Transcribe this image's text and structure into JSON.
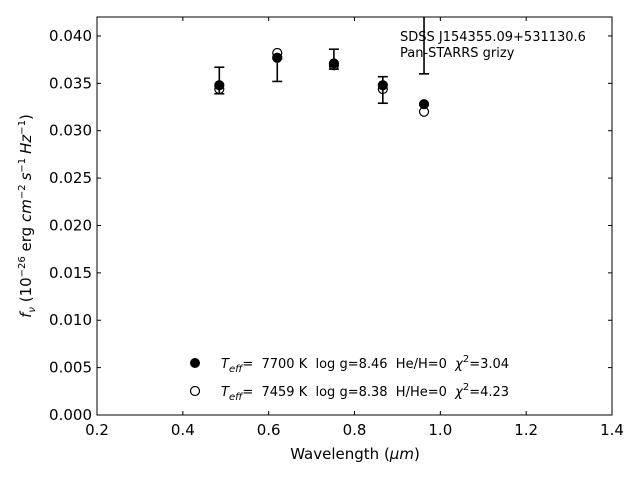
{
  "chart_data": {
    "type": "scatter",
    "title": "",
    "xlabel_prefix": "Wavelength (",
    "xlabel_symbol": "μm",
    "xlabel_suffix": ")",
    "ylabel": "f_ν (10^-26 erg cm^-2 s^-1 Hz^-1)",
    "ylabel_parts": {
      "f": "f",
      "nu": "ν",
      "open": " (10",
      "exp1": "−26",
      "erg": " erg ",
      "cm": "cm",
      "exp2": "−2",
      "s": "s",
      "exp3": "−1",
      "hz": "Hz",
      "exp4": "−1",
      "close": ")"
    },
    "xlim": [
      0.2,
      1.4
    ],
    "ylim": [
      0.0,
      0.042
    ],
    "xticks": [
      0.2,
      0.4,
      0.6,
      0.8,
      1.0,
      1.2,
      1.4
    ],
    "xtick_labels": [
      "0.2",
      "0.4",
      "0.6",
      "0.8",
      "1.0",
      "1.2",
      "1.4"
    ],
    "yticks": [
      0.0,
      0.005,
      0.01,
      0.015,
      0.02,
      0.025,
      0.03,
      0.035,
      0.04
    ],
    "ytick_labels": [
      "0.000",
      "0.005",
      "0.010",
      "0.015",
      "0.020",
      "0.025",
      "0.030",
      "0.035",
      "0.040"
    ],
    "annotation": {
      "line1": "SDSS J154355.09+531130.6",
      "line2": "Pan-STARRS grizy"
    },
    "observed": {
      "x": [
        0.485,
        0.62,
        0.752,
        0.866,
        0.962
      ],
      "y_low": [
        0.0339,
        0.0352,
        0.0365,
        0.0329,
        0.036
      ],
      "y_high": [
        0.0367,
        0.0376,
        0.0386,
        0.0357,
        0.043
      ]
    },
    "series": [
      {
        "marker": "filled",
        "legend": {
          "teff_sym": "T",
          "teff_sub": "eff",
          "text": "=  7700 K  log g=8.46  He/H=0  ",
          "chi_sym": "χ",
          "chi_sup": "2",
          "chi_val": "=3.04"
        },
        "x": [
          0.485,
          0.62,
          0.752,
          0.866,
          0.962
        ],
        "y": [
          0.0348,
          0.0377,
          0.0371,
          0.0348,
          0.0328
        ]
      },
      {
        "marker": "open",
        "legend": {
          "teff_sym": "T",
          "teff_sub": "eff",
          "text": "=  7459 K  log g=8.38  H/He=0  ",
          "chi_sym": "χ",
          "chi_sup": "2",
          "chi_val": "=4.23"
        },
        "x": [
          0.485,
          0.62,
          0.752,
          0.866,
          0.962
        ],
        "y": [
          0.0344,
          0.0382,
          0.0369,
          0.0344,
          0.032
        ]
      }
    ],
    "legend_position": "lower-center",
    "grid": false,
    "colors": {
      "marker": "#000000",
      "background": "#ffffff"
    }
  }
}
